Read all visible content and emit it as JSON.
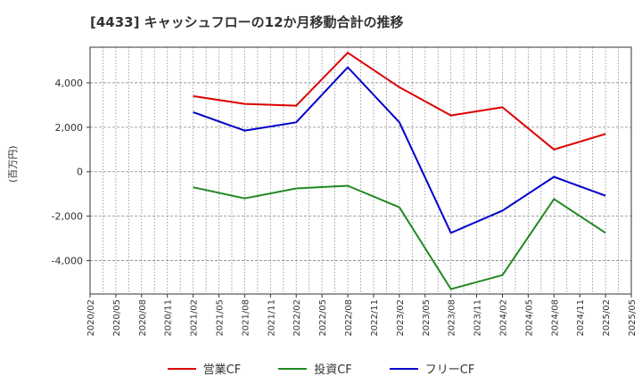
{
  "chart_data": {
    "type": "line",
    "title": "[4433]  キャッシュフローの12か月移動合計の推移",
    "ylabel": "(百万円)",
    "xlabel": "",
    "x_ticks": [
      "2020/02",
      "2020/05",
      "2020/08",
      "2020/11",
      "2021/02",
      "2021/05",
      "2021/08",
      "2021/11",
      "2022/02",
      "2022/05",
      "2022/08",
      "2022/11",
      "2023/02",
      "2023/05",
      "2023/08",
      "2023/11",
      "2024/02",
      "2024/05",
      "2024/08",
      "2024/11",
      "2025/02",
      "2025/05"
    ],
    "y_ticks": [
      "4,000",
      "2,000",
      "0",
      "-2,000",
      "-4,000"
    ],
    "y_tick_values": [
      4000,
      2000,
      0,
      -2000,
      -4000
    ],
    "ylim": [
      -5500,
      5600
    ],
    "grid": true,
    "legend_position": "bottom",
    "series": [
      {
        "name": "営業CF",
        "color": "#dd0000",
        "points": [
          [
            "2021/02",
            3400
          ],
          [
            "2021/08",
            3050
          ],
          [
            "2022/02",
            2970
          ],
          [
            "2022/08",
            5350
          ],
          [
            "2023/02",
            3800
          ],
          [
            "2023/08",
            2530
          ],
          [
            "2024/02",
            2900
          ],
          [
            "2024/08",
            1000
          ],
          [
            "2025/02",
            1700
          ]
        ]
      },
      {
        "name": "投資CF",
        "color": "#228822",
        "points": [
          [
            "2021/02",
            -700
          ],
          [
            "2021/08",
            -1200
          ],
          [
            "2022/02",
            -750
          ],
          [
            "2022/08",
            -630
          ],
          [
            "2023/02",
            -1600
          ],
          [
            "2023/08",
            -5280
          ],
          [
            "2024/02",
            -4650
          ],
          [
            "2024/08",
            -1230
          ],
          [
            "2025/02",
            -2750
          ]
        ]
      },
      {
        "name": "フリーCF",
        "color": "#0000cc",
        "points": [
          [
            "2021/02",
            2680
          ],
          [
            "2021/08",
            1850
          ],
          [
            "2022/02",
            2220
          ],
          [
            "2022/08",
            4700
          ],
          [
            "2023/02",
            2220
          ],
          [
            "2023/08",
            -2750
          ],
          [
            "2024/02",
            -1750
          ],
          [
            "2024/08",
            -230
          ],
          [
            "2025/02",
            -1080
          ]
        ]
      }
    ]
  }
}
